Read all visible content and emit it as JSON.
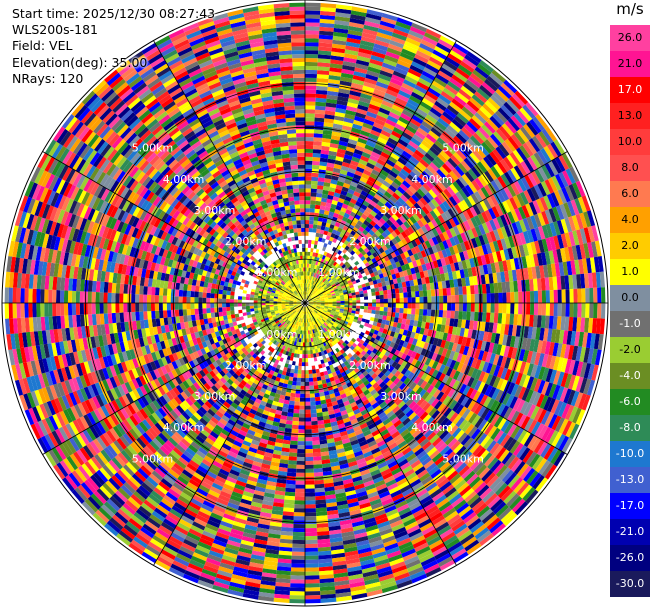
{
  "info": {
    "start_time": "Start time: 2025/12/30 08:27:43",
    "site": "WLS200s-181",
    "field": "Field: VEL",
    "elevation": "Elevation(deg): 35.00",
    "nrays": "NRays: 120"
  },
  "range_rings": {
    "max_range_km": 6.9,
    "rings_km": [
      1,
      2,
      3,
      4,
      5
    ],
    "label_format": "{v}.00km",
    "labels": [
      "1.00km",
      "2.00km",
      "3.00km",
      "4.00km",
      "5.00km"
    ]
  },
  "rays": 120,
  "colorbar": {
    "unit": "m/s",
    "ticks": [
      "26.0",
      "21.0",
      "17.0",
      "13.0",
      "10.0",
      "8.0",
      "6.0",
      "4.0",
      "2.0",
      "1.0",
      "0.0",
      "-1.0",
      "-2.0",
      "-4.0",
      "-6.0",
      "-8.0",
      "-10.0",
      "-13.0",
      "-17.0",
      "-21.0",
      "-26.0",
      "-30.0"
    ],
    "colors": [
      "#ff40a0",
      "#ff1493",
      "#ff0000",
      "#ff2020",
      "#ff3c3c",
      "#ff5050",
      "#ff7a50",
      "#ffa000",
      "#ffcc00",
      "#ffff00",
      "#7f8fa0",
      "#707070",
      "#9acd32",
      "#6b8e23",
      "#228b22",
      "#2e8b57",
      "#1e78d0",
      "#4060d0",
      "#0000ff",
      "#0000b0",
      "#000080",
      "#1a1a5c"
    ]
  }
}
